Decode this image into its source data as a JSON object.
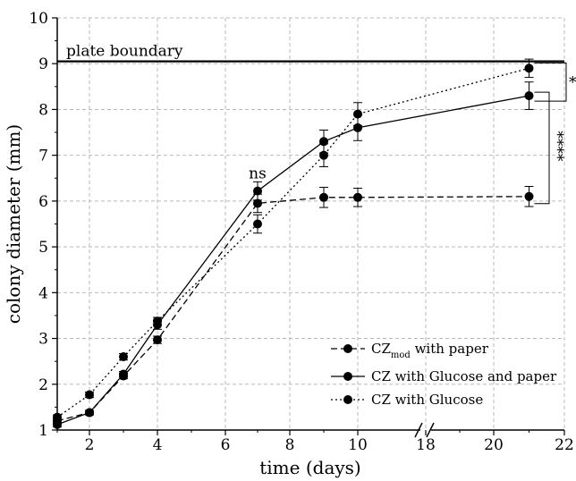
{
  "chart_data": {
    "type": "line",
    "xlabel": "time (days)",
    "ylabel": "colony diameter (mm)",
    "ylim": [
      1,
      10
    ],
    "x_ticks": [
      "2",
      "4",
      "6",
      "8",
      "10",
      "18",
      "20",
      "22"
    ],
    "y_ticks": [
      "1",
      "2",
      "3",
      "4",
      "5",
      "6",
      "7",
      "8",
      "9",
      "10"
    ],
    "x_axis_break": true,
    "x_segments": [
      {
        "range": [
          1,
          10
        ]
      },
      {
        "range": [
          18,
          22
        ]
      }
    ],
    "grid": true,
    "legend_placement": "bottom-right",
    "reference_line": {
      "label": "plate boundary",
      "y": 9.05
    },
    "annotations": {
      "ns": "ns",
      "sig_top": "*",
      "sig_bottom": "****"
    },
    "series": [
      {
        "name": "CZ",
        "name_sub": "mod",
        "name_rest": " with paper",
        "style": "dashed",
        "x": [
          1,
          2,
          3,
          4,
          7,
          9,
          10,
          21
        ],
        "y": [
          1.2,
          1.38,
          2.18,
          2.97,
          5.95,
          6.08,
          6.08,
          6.1
        ],
        "err": [
          0.06,
          0.05,
          0.06,
          0.08,
          0.2,
          0.22,
          0.2,
          0.22
        ]
      },
      {
        "name": "CZ with Glucose and paper",
        "style": "solid",
        "x": [
          1,
          2,
          3,
          4,
          7,
          9,
          10,
          21
        ],
        "y": [
          1.12,
          1.38,
          2.22,
          3.3,
          6.22,
          7.3,
          7.6,
          8.3
        ],
        "err": [
          0.05,
          0.05,
          0.06,
          0.1,
          0.2,
          0.25,
          0.28,
          0.3
        ]
      },
      {
        "name": "CZ with Glucose",
        "style": "dotted",
        "x": [
          1,
          2,
          3,
          4,
          7,
          9,
          10,
          21
        ],
        "y": [
          1.28,
          1.77,
          2.6,
          3.38,
          5.5,
          7.0,
          7.9,
          8.9
        ],
        "err": [
          0.05,
          0.06,
          0.07,
          0.08,
          0.2,
          0.25,
          0.25,
          0.2
        ]
      }
    ]
  }
}
